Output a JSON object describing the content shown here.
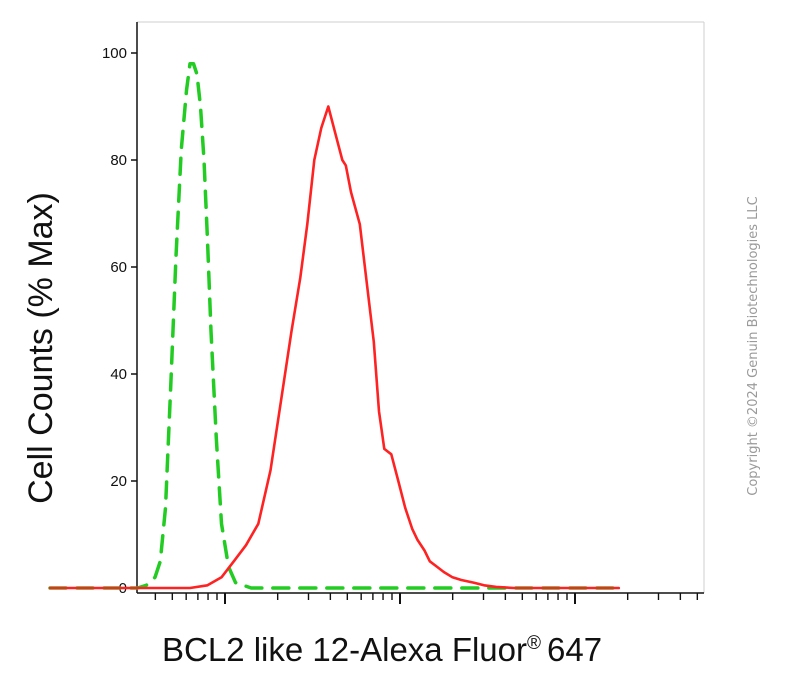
{
  "chart_data": {
    "type": "line",
    "title": "",
    "xlabel": "BCL2 like 12-Alexa Fluor",
    "xlabel_mark": "®",
    "xlabel_suffix": "647",
    "ylabel": "Cell Counts (% Max)",
    "x_scale": "log",
    "ylim": [
      0,
      100
    ],
    "yticks": [
      0,
      20,
      40,
      60,
      80,
      100
    ],
    "ytick_labels": [
      "0",
      "20",
      "40",
      "60",
      "80",
      "100"
    ],
    "grid": false,
    "legend": "none",
    "series": [
      {
        "color": "#22cc22",
        "style": "dashed",
        "x": [
          0.0,
          0.5,
          0.55,
          0.6,
          0.63,
          0.66,
          0.69,
          0.72,
          0.75,
          0.78,
          0.8,
          0.82,
          0.84,
          0.86,
          0.88,
          0.9,
          0.92,
          0.95,
          0.98,
          1.02,
          1.06,
          1.15,
          1.5,
          3.25
        ],
        "y": [
          0,
          0,
          0.5,
          2,
          5,
          15,
          38,
          62,
          82,
          93,
          98,
          98,
          96,
          90,
          80,
          65,
          48,
          28,
          12,
          4,
          1,
          0,
          0,
          0
        ]
      },
      {
        "color": "#ff2222",
        "style": "solid",
        "x": [
          0.0,
          0.8,
          0.9,
          0.98,
          1.05,
          1.12,
          1.19,
          1.26,
          1.32,
          1.38,
          1.43,
          1.47,
          1.51,
          1.55,
          1.59,
          1.63,
          1.67,
          1.69,
          1.72,
          1.77,
          1.81,
          1.85,
          1.88,
          1.91,
          1.95,
          1.99,
          2.03,
          2.07,
          2.1,
          2.14,
          2.17,
          2.21,
          2.25,
          2.3,
          2.35,
          2.42,
          2.48,
          2.55,
          2.65,
          2.8,
          3.25
        ],
        "y": [
          0,
          0,
          0.5,
          2,
          5,
          8,
          12,
          22,
          35,
          48,
          58,
          68,
          80,
          86,
          90,
          85,
          80,
          79,
          74,
          68,
          57,
          46,
          33,
          26,
          25,
          20,
          15,
          11,
          9,
          7,
          5,
          4,
          3,
          2,
          1.5,
          1,
          0.5,
          0.2,
          0,
          0,
          0
        ]
      }
    ]
  },
  "watermark": "Copyright ©2024 Genuin Biotechnologies LLC"
}
